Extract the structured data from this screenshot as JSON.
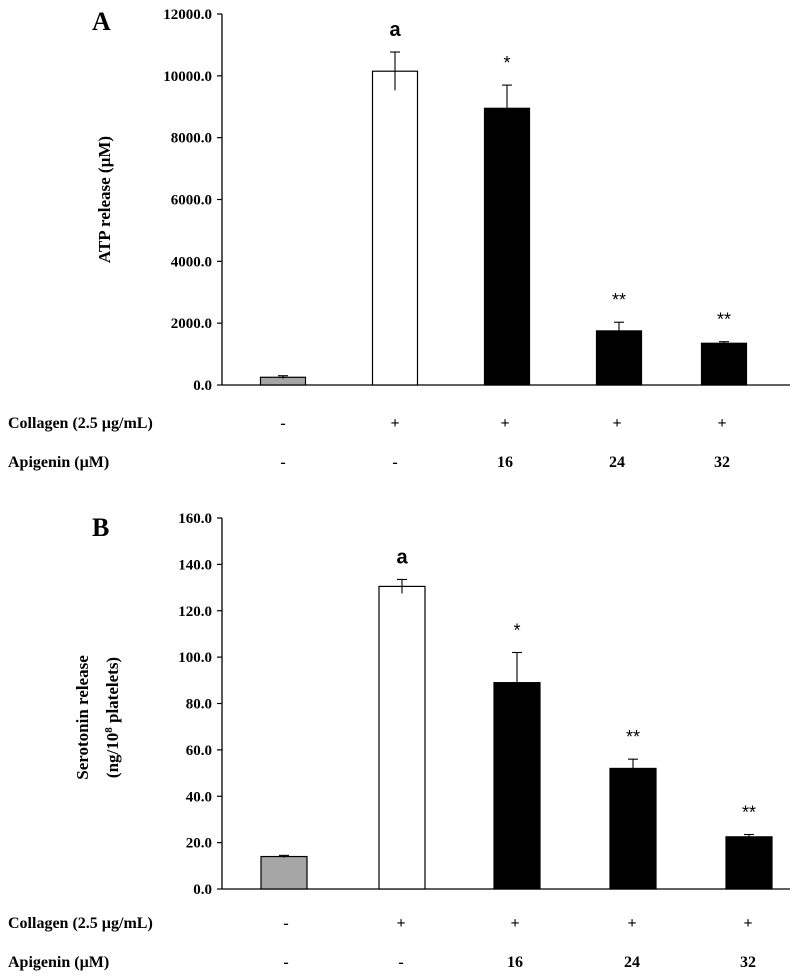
{
  "chart_data": [
    {
      "type": "bar",
      "panel": "A",
      "ylabel": "ATP release (µM)",
      "ylim": [
        0,
        12000
      ],
      "yticks": [
        "0.0",
        "2000.0",
        "4000.0",
        "6000.0",
        "8000.0",
        "10000.0",
        "12000.0"
      ],
      "ytick_values": [
        0,
        2000,
        4000,
        6000,
        8000,
        10000,
        12000
      ],
      "values": [
        250,
        10150,
        8950,
        1750,
        1350
      ],
      "errors": [
        50,
        620,
        750,
        280,
        50
      ],
      "bar_colors": [
        "#a6a6a6",
        "#ffffff",
        "#000000",
        "#000000",
        "#000000"
      ],
      "annotations": [
        "",
        "a",
        "*",
        "**",
        "**"
      ],
      "conditions": {
        "collagen_label": "Collagen  (2.5 µg/mL)",
        "collagen": [
          "-",
          "+",
          "+",
          "+",
          "+"
        ],
        "apigenin_label": "Apigenin (µM)",
        "apigenin": [
          "-",
          "-",
          "16",
          "24",
          "32"
        ]
      }
    },
    {
      "type": "bar",
      "panel": "B",
      "ylabel": "Serotonin release",
      "ylabel_line2_prefix": "(ng/10",
      "ylabel_line2_sup": "8",
      "ylabel_line2_suffix": " platelets)",
      "ylim": [
        0,
        160
      ],
      "yticks": [
        "0.0",
        "20.0",
        "40.0",
        "60.0",
        "80.0",
        "100.0",
        "120.0",
        "140.0",
        "160.0"
      ],
      "ytick_values": [
        0,
        20,
        40,
        60,
        80,
        100,
        120,
        140,
        160
      ],
      "values": [
        14,
        130.5,
        89,
        52,
        22.5
      ],
      "errors": [
        0.5,
        3,
        13,
        4,
        1
      ],
      "bar_colors": [
        "#a6a6a6",
        "#ffffff",
        "#000000",
        "#000000",
        "#000000"
      ],
      "annotations": [
        "",
        "a",
        "*",
        "**",
        "**"
      ],
      "conditions": {
        "collagen_label": "Collagen  (2.5 µg/mL)",
        "collagen": [
          "-",
          "+",
          "+",
          "+",
          "+"
        ],
        "apigenin_label": "Apigenin (µM)",
        "apigenin": [
          "-",
          "-",
          "16",
          "24",
          "32"
        ]
      }
    }
  ]
}
